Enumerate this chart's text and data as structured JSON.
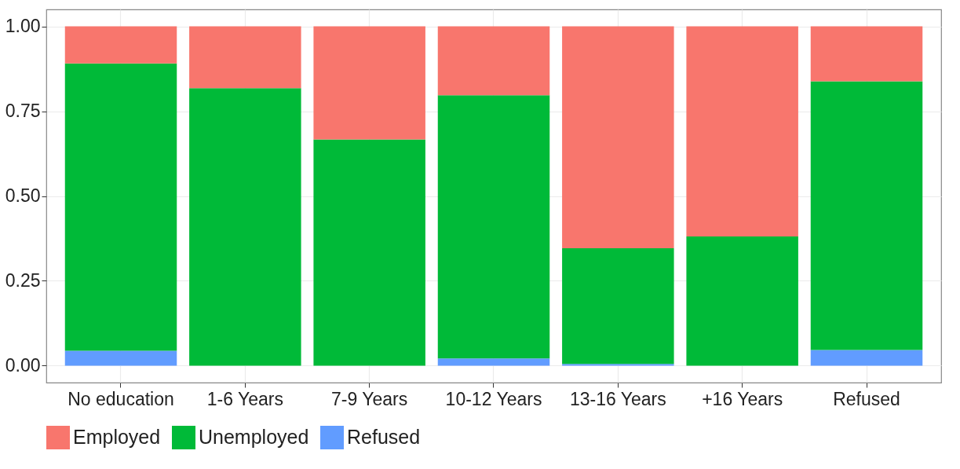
{
  "chart_data": {
    "type": "bar",
    "stacked": true,
    "categories": [
      "No education",
      "1-6 Years",
      "7-9 Years",
      "10-12 Years",
      "13-16 Years",
      "+16 Years",
      "Refused"
    ],
    "series": [
      {
        "name": "Refused",
        "color": "#619cff",
        "values": [
          0.044,
          0,
          0,
          0.021,
          0.005,
          0,
          0.046
        ]
      },
      {
        "name": "Unemployed",
        "color": "#00ba38",
        "values": [
          0.847,
          0.818,
          0.667,
          0.776,
          0.341,
          0.381,
          0.792
        ]
      },
      {
        "name": "Employed",
        "color": "#f8766d",
        "values": [
          0.109,
          0.182,
          0.333,
          0.203,
          0.654,
          0.619,
          0.162
        ]
      }
    ],
    "ylim": [
      -0.05,
      1.05
    ],
    "yticks": [
      {
        "value": 0,
        "label": "0.00"
      },
      {
        "value": 0.25,
        "label": "0.25"
      },
      {
        "value": 0.5,
        "label": "0.50"
      },
      {
        "value": 0.75,
        "label": "0.75"
      },
      {
        "value": 1,
        "label": "1.00"
      }
    ],
    "grid": true,
    "legend": "bottom"
  }
}
